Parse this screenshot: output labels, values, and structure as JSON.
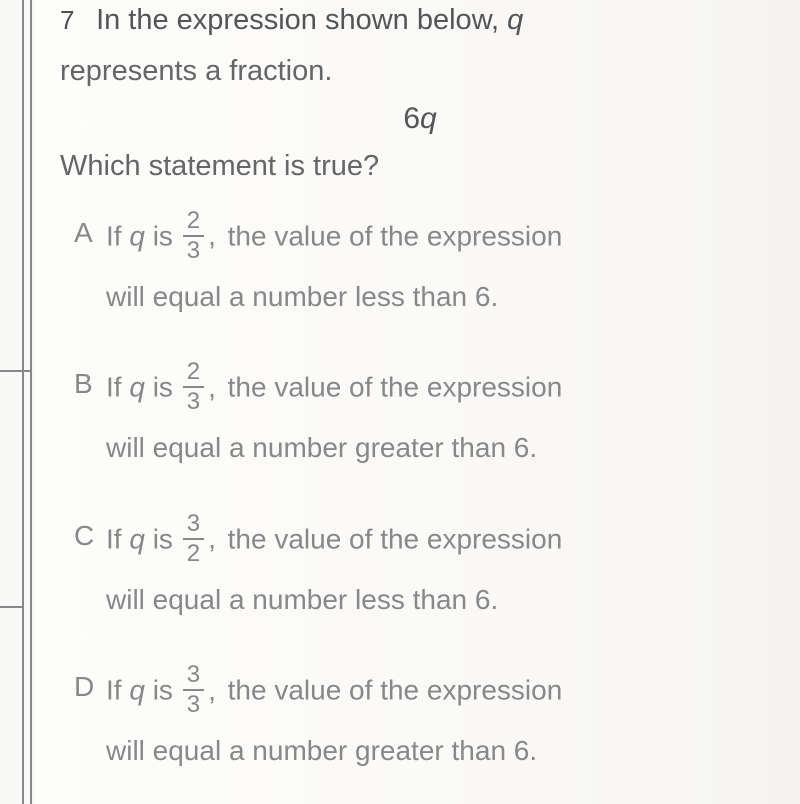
{
  "question": {
    "number": "7",
    "stem_line1": "In the expression shown below,",
    "stem_var": "q",
    "stem_line2": "represents a fraction.",
    "expression_coeff": "6",
    "expression_var": "q",
    "prompt": "Which statement is true?"
  },
  "choices": [
    {
      "letter": "A",
      "prefix": "If",
      "var": "q",
      "verb": "is",
      "frac_n": "2",
      "frac_d": "3",
      "tail1": "the value of the expression",
      "tail2": "will equal a number less than 6."
    },
    {
      "letter": "B",
      "prefix": "If",
      "var": "q",
      "verb": "is",
      "frac_n": "2",
      "frac_d": "3",
      "tail1": "the value of the expression",
      "tail2": "will equal a number greater than 6."
    },
    {
      "letter": "C",
      "prefix": "If",
      "var": "q",
      "verb": "is",
      "frac_n": "3",
      "frac_d": "2",
      "tail1": "the value of the expression",
      "tail2": "will equal a number less than 6."
    },
    {
      "letter": "D",
      "prefix": "If",
      "var": "q",
      "verb": "is",
      "frac_n": "3",
      "frac_d": "3",
      "tail1": "the value of the expression",
      "tail2": "will equal a number greater than 6."
    }
  ],
  "style": {
    "background": "#f8f8f6",
    "text_color": "#7a7a7a",
    "stem_color": "#555555",
    "rule_color": "#888888",
    "base_fontsize": 28
  }
}
